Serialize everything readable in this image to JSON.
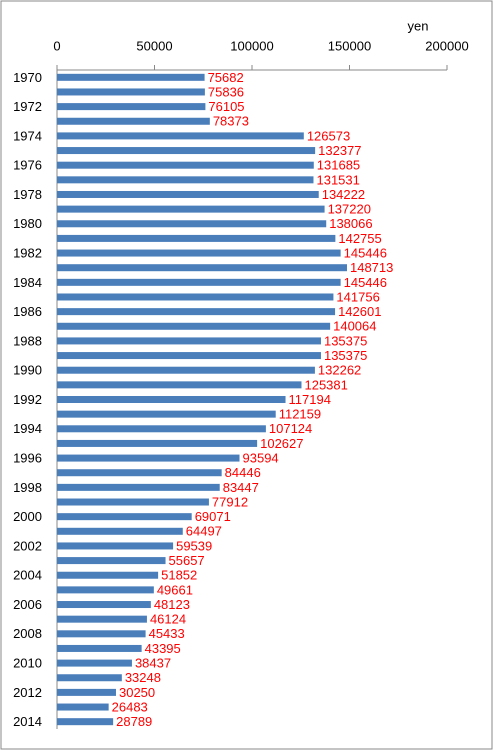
{
  "chart_data": {
    "type": "bar",
    "orientation": "horizontal",
    "x_axis_label": "yen",
    "categories": [
      "1970",
      null,
      "1972",
      null,
      "1974",
      null,
      "1976",
      null,
      "1978",
      null,
      "1980",
      null,
      "1982",
      null,
      "1984",
      null,
      "1986",
      null,
      "1988",
      null,
      "1990",
      null,
      "1992",
      null,
      "1994",
      null,
      "1996",
      null,
      "1998",
      null,
      "2000",
      null,
      "2002",
      null,
      "2004",
      null,
      "2006",
      null,
      "2008",
      null,
      "2010",
      null,
      "2012",
      null,
      "2014"
    ],
    "values": [
      75682,
      75836,
      76105,
      78373,
      126573,
      132377,
      131685,
      131531,
      134222,
      137220,
      138066,
      142755,
      145446,
      148713,
      145446,
      141756,
      142601,
      140064,
      135375,
      135375,
      132262,
      125381,
      117194,
      112159,
      107124,
      102627,
      93594,
      84446,
      83447,
      77912,
      69071,
      64497,
      59539,
      55657,
      51852,
      49661,
      48123,
      46124,
      45433,
      43395,
      38437,
      33248,
      30250,
      26483,
      28789
    ],
    "color": "#4a7ebb",
    "value_label_color": "#ff0000",
    "xlim": [
      0,
      200000
    ],
    "xticks": [
      0,
      50000,
      100000,
      150000,
      200000
    ]
  }
}
